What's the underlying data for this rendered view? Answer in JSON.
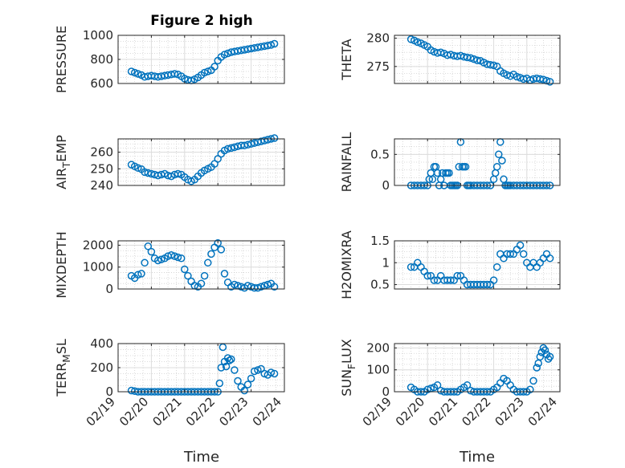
{
  "figure": {
    "title": "Figure 2 high",
    "xlabel": "Time"
  },
  "chart_data": [
    {
      "type": "scatter",
      "id": "pressure",
      "ylabel": "PRESSURE",
      "ylim": [
        600,
        1000
      ],
      "yticks": [
        600,
        800,
        1000
      ],
      "xlim": [
        0,
        5
      ],
      "xticks": [
        0,
        1,
        2,
        3,
        4,
        5
      ],
      "xticklabels": [
        "02/19",
        "02/20",
        "02/21",
        "02/22",
        "02/23",
        "02/24"
      ],
      "x": [
        0.4,
        0.5,
        0.6,
        0.7,
        0.8,
        0.9,
        1.0,
        1.1,
        1.2,
        1.3,
        1.4,
        1.5,
        1.6,
        1.7,
        1.8,
        1.9,
        2.0,
        2.1,
        2.2,
        2.3,
        2.4,
        2.5,
        2.6,
        2.7,
        2.8,
        2.9,
        3.0,
        3.1,
        3.2,
        3.3,
        3.4,
        3.5,
        3.6,
        3.7,
        3.8,
        3.9,
        4.0,
        4.1,
        4.2,
        4.3,
        4.4,
        4.5,
        4.6,
        4.7
      ],
      "y": [
        700,
        690,
        680,
        670,
        655,
        660,
        665,
        660,
        655,
        660,
        665,
        670,
        675,
        680,
        675,
        660,
        640,
        630,
        625,
        635,
        650,
        670,
        690,
        700,
        710,
        740,
        790,
        820,
        840,
        850,
        860,
        865,
        870,
        875,
        880,
        885,
        890,
        895,
        900,
        905,
        910,
        915,
        920,
        930
      ]
    },
    {
      "type": "scatter",
      "id": "theta",
      "ylabel": "THETA",
      "ylim": [
        272,
        280.5
      ],
      "yticks": [
        275,
        280
      ],
      "xlim": [
        0,
        5
      ],
      "xticks": [
        0,
        1,
        2,
        3,
        4,
        5
      ],
      "xticklabels": [
        "02/19",
        "02/20",
        "02/21",
        "02/22",
        "02/23",
        "02/24"
      ],
      "x": [
        0.5,
        0.6,
        0.7,
        0.8,
        0.9,
        1.0,
        1.1,
        1.2,
        1.3,
        1.4,
        1.5,
        1.6,
        1.7,
        1.8,
        1.9,
        2.0,
        2.1,
        2.2,
        2.3,
        2.4,
        2.5,
        2.6,
        2.7,
        2.8,
        2.9,
        3.0,
        3.1,
        3.2,
        3.3,
        3.4,
        3.5,
        3.6,
        3.7,
        3.8,
        3.9,
        4.0,
        4.1,
        4.2,
        4.3,
        4.4,
        4.5,
        4.6,
        4.7
      ],
      "y": [
        279.8,
        279.6,
        279.3,
        279.1,
        278.8,
        278.5,
        277.9,
        277.6,
        277.4,
        277.5,
        277.3,
        277.0,
        277.1,
        276.9,
        276.8,
        276.9,
        276.7,
        276.6,
        276.5,
        276.3,
        276.1,
        276.0,
        275.7,
        275.4,
        275.3,
        275.2,
        275.0,
        274.2,
        273.8,
        273.5,
        273.3,
        273.6,
        273.2,
        273.0,
        272.8,
        272.9,
        272.6,
        272.8,
        272.9,
        272.8,
        272.7,
        272.5,
        272.3
      ]
    },
    {
      "type": "scatter",
      "id": "air_temp",
      "ylabel": "AIR",
      "ylabel_sub": "T",
      "ylabel_tail": "EMP",
      "ylim": [
        240,
        268
      ],
      "yticks": [
        240,
        250,
        260
      ],
      "xlim": [
        0,
        5
      ],
      "xticks": [
        0,
        1,
        2,
        3,
        4,
        5
      ],
      "xticklabels": [
        "02/19",
        "02/20",
        "02/21",
        "02/22",
        "02/23",
        "02/24"
      ],
      "x": [
        0.4,
        0.5,
        0.6,
        0.7,
        0.8,
        0.9,
        1.0,
        1.1,
        1.2,
        1.3,
        1.4,
        1.5,
        1.6,
        1.7,
        1.8,
        1.9,
        2.0,
        2.1,
        2.2,
        2.3,
        2.4,
        2.5,
        2.6,
        2.7,
        2.8,
        2.9,
        3.0,
        3.1,
        3.2,
        3.3,
        3.4,
        3.5,
        3.6,
        3.7,
        3.8,
        3.9,
        4.0,
        4.1,
        4.2,
        4.3,
        4.4,
        4.5,
        4.6,
        4.7
      ],
      "y": [
        252.5,
        251.5,
        250.5,
        249.8,
        248,
        247.5,
        247,
        246.5,
        246,
        246.5,
        247,
        246,
        245.5,
        246.5,
        247,
        246.5,
        245,
        243.5,
        242.5,
        243.5,
        245.5,
        247.5,
        249,
        250,
        251,
        253,
        256,
        259,
        261,
        262,
        262.5,
        263,
        263.5,
        264,
        264,
        264.5,
        265,
        265.5,
        266,
        266.5,
        267,
        267.5,
        268,
        268.5
      ]
    },
    {
      "type": "scatter",
      "id": "rainfall",
      "ylabel": "RAINFALL",
      "ylim": [
        0,
        0.75
      ],
      "yticks": [
        0,
        0.5
      ],
      "xlim": [
        0,
        5
      ],
      "xticks": [
        0,
        1,
        2,
        3,
        4,
        5
      ],
      "xticklabels": [
        "02/19",
        "02/20",
        "02/21",
        "02/22",
        "02/23",
        "02/24"
      ],
      "x": [
        0.5,
        0.6,
        0.7,
        0.8,
        0.9,
        1.0,
        1.05,
        1.1,
        1.15,
        1.2,
        1.25,
        1.3,
        1.35,
        1.4,
        1.45,
        1.5,
        1.55,
        1.6,
        1.65,
        1.7,
        1.75,
        1.8,
        1.85,
        1.9,
        1.95,
        2.0,
        2.05,
        2.1,
        2.15,
        2.2,
        2.25,
        2.3,
        2.4,
        2.5,
        2.6,
        2.7,
        2.8,
        2.9,
        3.0,
        3.05,
        3.1,
        3.15,
        3.2,
        3.25,
        3.3,
        3.35,
        3.4,
        3.45,
        3.5,
        3.6,
        3.7,
        3.8,
        3.9,
        4.0,
        4.1,
        4.2,
        4.3,
        4.4,
        4.5,
        4.6,
        4.7
      ],
      "y": [
        0,
        0,
        0,
        0,
        0,
        0,
        0.1,
        0.2,
        0.1,
        0.3,
        0.3,
        0.2,
        0,
        0.1,
        0.2,
        0,
        0.2,
        0.2,
        0.2,
        0,
        0,
        0,
        0,
        0,
        0.3,
        0.7,
        0.3,
        0.3,
        0.3,
        0,
        0,
        0,
        0,
        0,
        0,
        0,
        0,
        0,
        0.1,
        0.2,
        0.3,
        0.5,
        0.7,
        0.4,
        0.1,
        0,
        0,
        0,
        0,
        0,
        0,
        0,
        0,
        0,
        0,
        0,
        0,
        0,
        0,
        0,
        0
      ]
    },
    {
      "type": "scatter",
      "id": "mixdepth",
      "ylabel": "MIXDEPTH",
      "ylim": [
        0,
        2200
      ],
      "yticks": [
        0,
        1000,
        2000
      ],
      "xlim": [
        0,
        5
      ],
      "xticks": [
        0,
        1,
        2,
        3,
        4,
        5
      ],
      "xticklabels": [
        "02/19",
        "02/20",
        "02/21",
        "02/22",
        "02/23",
        "02/24"
      ],
      "x": [
        0.4,
        0.5,
        0.6,
        0.7,
        0.8,
        0.9,
        1.0,
        1.1,
        1.2,
        1.3,
        1.4,
        1.5,
        1.6,
        1.7,
        1.8,
        1.9,
        2.0,
        2.1,
        2.2,
        2.3,
        2.4,
        2.5,
        2.6,
        2.7,
        2.8,
        2.9,
        3.0,
        3.1,
        3.2,
        3.3,
        3.4,
        3.5,
        3.6,
        3.7,
        3.8,
        3.9,
        4.0,
        4.1,
        4.2,
        4.3,
        4.4,
        4.5,
        4.6,
        4.7
      ],
      "y": [
        600,
        500,
        650,
        700,
        1200,
        1950,
        1700,
        1400,
        1300,
        1350,
        1400,
        1500,
        1550,
        1500,
        1450,
        1400,
        900,
        600,
        350,
        150,
        100,
        250,
        600,
        1200,
        1600,
        1900,
        2100,
        1800,
        700,
        300,
        100,
        200,
        150,
        100,
        50,
        150,
        100,
        50,
        50,
        100,
        150,
        200,
        250,
        100
      ]
    },
    {
      "type": "scatter",
      "id": "h2omixra",
      "ylabel": "H2OMIXRA",
      "ylim": [
        0.4,
        1.5
      ],
      "yticks": [
        0.5,
        1,
        1.5
      ],
      "xlim": [
        0,
        5
      ],
      "xticks": [
        0,
        1,
        2,
        3,
        4,
        5
      ],
      "xticklabels": [
        "02/19",
        "02/20",
        "02/21",
        "02/22",
        "02/23",
        "02/24"
      ],
      "x": [
        0.5,
        0.6,
        0.7,
        0.8,
        0.9,
        1.0,
        1.1,
        1.2,
        1.3,
        1.4,
        1.5,
        1.6,
        1.7,
        1.8,
        1.9,
        2.0,
        2.1,
        2.2,
        2.3,
        2.4,
        2.5,
        2.6,
        2.7,
        2.8,
        2.9,
        3.0,
        3.1,
        3.2,
        3.3,
        3.4,
        3.5,
        3.6,
        3.7,
        3.8,
        3.9,
        4.0,
        4.1,
        4.2,
        4.3,
        4.4,
        4.5,
        4.6,
        4.7
      ],
      "y": [
        0.9,
        0.9,
        1.0,
        0.9,
        0.8,
        0.7,
        0.7,
        0.6,
        0.6,
        0.7,
        0.6,
        0.6,
        0.6,
        0.6,
        0.7,
        0.7,
        0.6,
        0.5,
        0.5,
        0.5,
        0.5,
        0.5,
        0.5,
        0.5,
        0.5,
        0.6,
        0.9,
        1.2,
        1.1,
        1.2,
        1.2,
        1.2,
        1.3,
        1.4,
        1.2,
        1.0,
        0.9,
        1.0,
        0.9,
        1.0,
        1.1,
        1.2,
        1.1
      ]
    },
    {
      "type": "scatter",
      "id": "terr_msl",
      "ylabel": "TERR",
      "ylabel_sub": "M",
      "ylabel_tail": "SL",
      "ylim": [
        0,
        400
      ],
      "yticks": [
        0,
        200,
        400
      ],
      "xlim": [
        0,
        5
      ],
      "xticks": [
        0,
        1,
        2,
        3,
        4,
        5
      ],
      "xticklabels": [
        "02/19",
        "02/20",
        "02/21",
        "02/22",
        "02/23",
        "02/24"
      ],
      "x": [
        0.4,
        0.5,
        0.6,
        0.7,
        0.8,
        0.9,
        1.0,
        1.1,
        1.2,
        1.3,
        1.4,
        1.5,
        1.6,
        1.7,
        1.8,
        1.9,
        2.0,
        2.1,
        2.2,
        2.3,
        2.4,
        2.5,
        2.6,
        2.7,
        2.8,
        2.9,
        3.0,
        3.05,
        3.1,
        3.15,
        3.2,
        3.25,
        3.3,
        3.35,
        3.4,
        3.5,
        3.6,
        3.7,
        3.8,
        3.9,
        4.0,
        4.1,
        4.2,
        4.3,
        4.4,
        4.5,
        4.6,
        4.7
      ],
      "y": [
        10,
        5,
        0,
        0,
        0,
        0,
        0,
        0,
        0,
        0,
        0,
        0,
        0,
        0,
        0,
        0,
        0,
        0,
        0,
        0,
        0,
        0,
        0,
        0,
        0,
        0,
        0,
        70,
        200,
        370,
        250,
        210,
        280,
        260,
        270,
        180,
        90,
        40,
        10,
        60,
        110,
        170,
        180,
        190,
        150,
        140,
        160,
        150
      ]
    },
    {
      "type": "scatter",
      "id": "sun_flux",
      "ylabel": "SUN",
      "ylabel_sub": "F",
      "ylabel_tail": "LUX",
      "ylim": [
        0,
        220
      ],
      "yticks": [
        0,
        100,
        200
      ],
      "xlim": [
        0,
        5
      ],
      "xticks": [
        0,
        1,
        2,
        3,
        4,
        5
      ],
      "xticklabels": [
        "02/19",
        "02/20",
        "02/21",
        "02/22",
        "02/23",
        "02/24"
      ],
      "x": [
        0.5,
        0.6,
        0.7,
        0.8,
        0.9,
        1.0,
        1.1,
        1.2,
        1.3,
        1.4,
        1.5,
        1.6,
        1.7,
        1.8,
        1.9,
        2.0,
        2.1,
        2.2,
        2.3,
        2.4,
        2.5,
        2.6,
        2.7,
        2.8,
        2.9,
        3.0,
        3.1,
        3.2,
        3.3,
        3.4,
        3.5,
        3.6,
        3.7,
        3.8,
        3.9,
        4.0,
        4.1,
        4.2,
        4.3,
        4.35,
        4.4,
        4.45,
        4.5,
        4.55,
        4.6,
        4.65,
        4.7
      ],
      "y": [
        20,
        10,
        0,
        0,
        0,
        10,
        15,
        20,
        30,
        5,
        0,
        0,
        0,
        0,
        0,
        10,
        20,
        30,
        5,
        0,
        0,
        0,
        0,
        0,
        0,
        10,
        20,
        40,
        60,
        50,
        30,
        10,
        0,
        0,
        0,
        0,
        10,
        50,
        110,
        130,
        160,
        180,
        200,
        190,
        170,
        150,
        160
      ]
    }
  ]
}
